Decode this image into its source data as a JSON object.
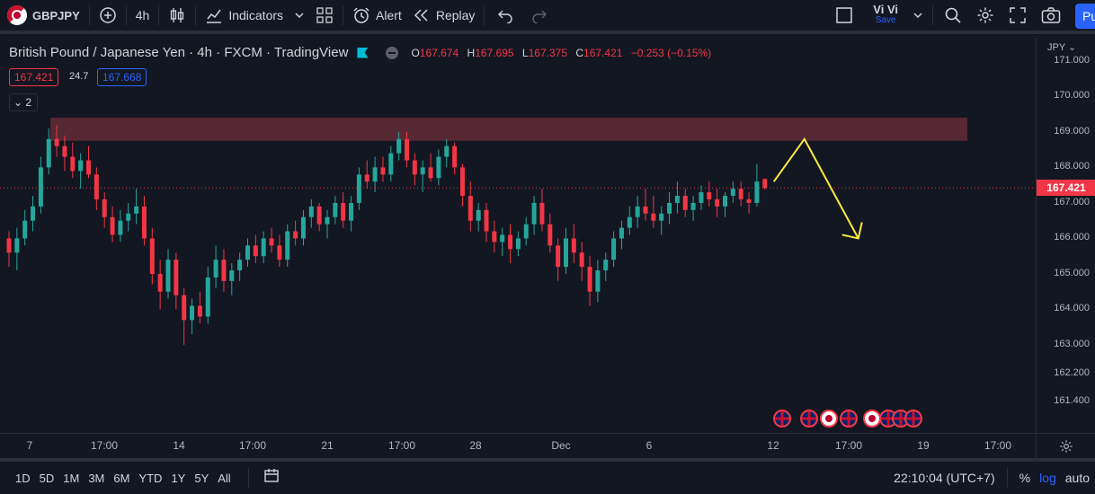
{
  "topbar": {
    "symbol": "GBPJPY",
    "interval": "4h",
    "indicators_label": "Indicators",
    "alert_label": "Alert",
    "replay_label": "Replay",
    "user_name": "Vi Vi",
    "save_label": "Save",
    "publish_label": "Pu"
  },
  "legend": {
    "title": "British Pound / Japanese Yen · 4h · FXCM · TradingView",
    "o_label": "O",
    "o_value": "167.674",
    "h_label": "H",
    "h_value": "167.695",
    "l_label": "L",
    "l_value": "167.375",
    "c_label": "C",
    "c_value": "167.421",
    "change": "−0.253 (−0.15%)",
    "bid": "167.421",
    "spread": "24.7",
    "ask": "167.668",
    "collapse_count": "2"
  },
  "price_axis": {
    "currency": "JPY",
    "labels": [
      "171.000",
      "170.000",
      "169.000",
      "168.000",
      "167.000",
      "166.000",
      "165.000",
      "164.000",
      "163.000",
      "162.200",
      "161.400"
    ],
    "current_price": "167.421"
  },
  "time_axis": {
    "labels": [
      "7",
      "17:00",
      "14",
      "17:00",
      "21",
      "17:00",
      "28",
      "Dec",
      "6",
      "12",
      "17:00",
      "19",
      "17:00"
    ]
  },
  "bottombar": {
    "ranges": [
      "1D",
      "5D",
      "1M",
      "3M",
      "6M",
      "YTD",
      "1Y",
      "5Y",
      "All"
    ],
    "clock": "22:10:04 (UTC+7)",
    "percent_label": "%",
    "log_label": "log",
    "auto_label": "auto"
  },
  "colors": {
    "up": "#26a69a",
    "down": "#f23645",
    "zone": "#5d2a35",
    "arrow": "#ffeb3b",
    "accent": "#2962ff"
  },
  "chart_data": {
    "type": "candlestick",
    "ylim": [
      160.9,
      171.35
    ],
    "candles": [
      [
        166.0,
        166.2,
        165.2,
        165.6
      ],
      [
        165.6,
        166.3,
        165.1,
        166.0
      ],
      [
        166.0,
        166.8,
        165.8,
        166.5
      ],
      [
        166.5,
        167.2,
        166.2,
        166.9
      ],
      [
        166.9,
        168.3,
        166.7,
        168.0
      ],
      [
        168.0,
        169.1,
        167.8,
        168.8
      ],
      [
        168.8,
        169.2,
        168.3,
        168.6
      ],
      [
        168.6,
        168.9,
        167.9,
        168.3
      ],
      [
        168.3,
        168.7,
        167.7,
        167.9
      ],
      [
        167.9,
        168.4,
        167.4,
        168.2
      ],
      [
        168.2,
        168.6,
        167.7,
        167.8
      ],
      [
        167.8,
        168.0,
        166.8,
        167.1
      ],
      [
        167.1,
        167.3,
        166.3,
        166.6
      ],
      [
        166.6,
        166.9,
        165.9,
        166.1
      ],
      [
        166.1,
        166.8,
        165.9,
        166.5
      ],
      [
        166.5,
        167.0,
        166.2,
        166.7
      ],
      [
        166.7,
        167.4,
        166.4,
        166.9
      ],
      [
        166.9,
        167.2,
        165.8,
        166.0
      ],
      [
        166.0,
        166.3,
        164.7,
        165.0
      ],
      [
        165.0,
        165.4,
        164.0,
        164.5
      ],
      [
        164.5,
        165.7,
        164.3,
        165.4
      ],
      [
        165.4,
        165.6,
        164.0,
        164.4
      ],
      [
        164.4,
        164.6,
        163.0,
        163.7
      ],
      [
        163.7,
        164.3,
        163.3,
        164.1
      ],
      [
        164.1,
        164.5,
        163.6,
        163.8
      ],
      [
        163.8,
        165.2,
        163.6,
        164.9
      ],
      [
        164.9,
        165.8,
        164.6,
        165.4
      ],
      [
        165.4,
        165.7,
        164.5,
        164.8
      ],
      [
        164.8,
        165.3,
        164.4,
        165.1
      ],
      [
        165.1,
        165.6,
        164.8,
        165.4
      ],
      [
        165.4,
        166.0,
        165.2,
        165.8
      ],
      [
        165.8,
        166.1,
        165.3,
        165.5
      ],
      [
        165.5,
        166.2,
        165.3,
        166.0
      ],
      [
        166.0,
        166.3,
        165.6,
        165.8
      ],
      [
        165.8,
        166.1,
        165.2,
        165.4
      ],
      [
        165.4,
        166.4,
        165.2,
        166.2
      ],
      [
        166.2,
        166.5,
        165.8,
        166.0
      ],
      [
        166.0,
        166.8,
        165.8,
        166.6
      ],
      [
        166.6,
        167.1,
        166.3,
        166.9
      ],
      [
        166.9,
        167.0,
        166.2,
        166.4
      ],
      [
        166.4,
        166.8,
        166.0,
        166.6
      ],
      [
        166.6,
        167.2,
        166.4,
        167.0
      ],
      [
        167.0,
        167.3,
        166.3,
        166.5
      ],
      [
        166.5,
        167.2,
        166.2,
        167.0
      ],
      [
        167.0,
        168.0,
        166.8,
        167.8
      ],
      [
        167.8,
        168.2,
        167.4,
        167.6
      ],
      [
        167.6,
        168.3,
        167.3,
        168.0
      ],
      [
        168.0,
        168.3,
        167.6,
        167.8
      ],
      [
        167.8,
        168.6,
        167.6,
        168.4
      ],
      [
        168.4,
        169.0,
        168.2,
        168.8
      ],
      [
        168.8,
        169.0,
        168.0,
        168.2
      ],
      [
        168.2,
        168.4,
        167.5,
        167.8
      ],
      [
        167.8,
        168.2,
        167.3,
        168.0
      ],
      [
        168.0,
        168.4,
        167.6,
        167.7
      ],
      [
        167.7,
        168.5,
        167.5,
        168.3
      ],
      [
        168.3,
        168.8,
        168.0,
        168.6
      ],
      [
        168.6,
        168.7,
        167.8,
        168.0
      ],
      [
        168.0,
        168.1,
        166.9,
        167.2
      ],
      [
        167.2,
        167.6,
        166.2,
        166.5
      ],
      [
        166.5,
        167.0,
        166.2,
        166.8
      ],
      [
        166.8,
        167.0,
        165.9,
        166.2
      ],
      [
        166.2,
        166.5,
        165.6,
        165.9
      ],
      [
        165.9,
        166.3,
        165.5,
        166.1
      ],
      [
        166.1,
        166.4,
        165.3,
        165.7
      ],
      [
        165.7,
        166.2,
        165.5,
        166.0
      ],
      [
        166.0,
        166.6,
        165.8,
        166.4
      ],
      [
        166.4,
        167.2,
        166.1,
        167.0
      ],
      [
        167.0,
        167.4,
        166.2,
        166.4
      ],
      [
        166.4,
        166.7,
        165.6,
        165.8
      ],
      [
        165.8,
        166.0,
        164.8,
        165.2
      ],
      [
        165.2,
        166.3,
        165.0,
        166.0
      ],
      [
        166.0,
        166.4,
        165.3,
        165.6
      ],
      [
        165.6,
        165.9,
        164.8,
        165.2
      ],
      [
        165.2,
        165.5,
        164.1,
        164.5
      ],
      [
        164.5,
        165.4,
        164.2,
        165.1
      ],
      [
        165.1,
        165.6,
        164.8,
        165.4
      ],
      [
        165.4,
        166.2,
        165.2,
        166.0
      ],
      [
        166.0,
        166.5,
        165.7,
        166.3
      ],
      [
        166.3,
        166.9,
        166.1,
        166.6
      ],
      [
        166.6,
        167.2,
        166.3,
        166.9
      ],
      [
        166.9,
        167.4,
        166.5,
        166.7
      ],
      [
        166.7,
        167.2,
        166.3,
        166.5
      ],
      [
        166.5,
        166.9,
        166.1,
        166.7
      ],
      [
        166.7,
        167.3,
        166.4,
        167.0
      ],
      [
        167.0,
        167.6,
        166.7,
        167.2
      ],
      [
        167.2,
        167.4,
        166.6,
        166.8
      ],
      [
        166.8,
        167.2,
        166.5,
        167.0
      ],
      [
        167.0,
        167.5,
        166.8,
        167.3
      ],
      [
        167.3,
        167.6,
        166.9,
        167.1
      ],
      [
        167.1,
        167.4,
        166.6,
        166.9
      ],
      [
        166.9,
        167.3,
        166.6,
        167.2
      ],
      [
        167.2,
        167.6,
        167.0,
        167.4
      ],
      [
        167.4,
        167.6,
        166.9,
        167.1
      ],
      [
        167.1,
        167.3,
        166.7,
        167.0
      ],
      [
        167.0,
        168.1,
        166.9,
        167.6
      ],
      [
        167.674,
        167.695,
        167.375,
        167.421
      ]
    ],
    "resistance_zone": [
      168.75,
      169.4
    ]
  }
}
